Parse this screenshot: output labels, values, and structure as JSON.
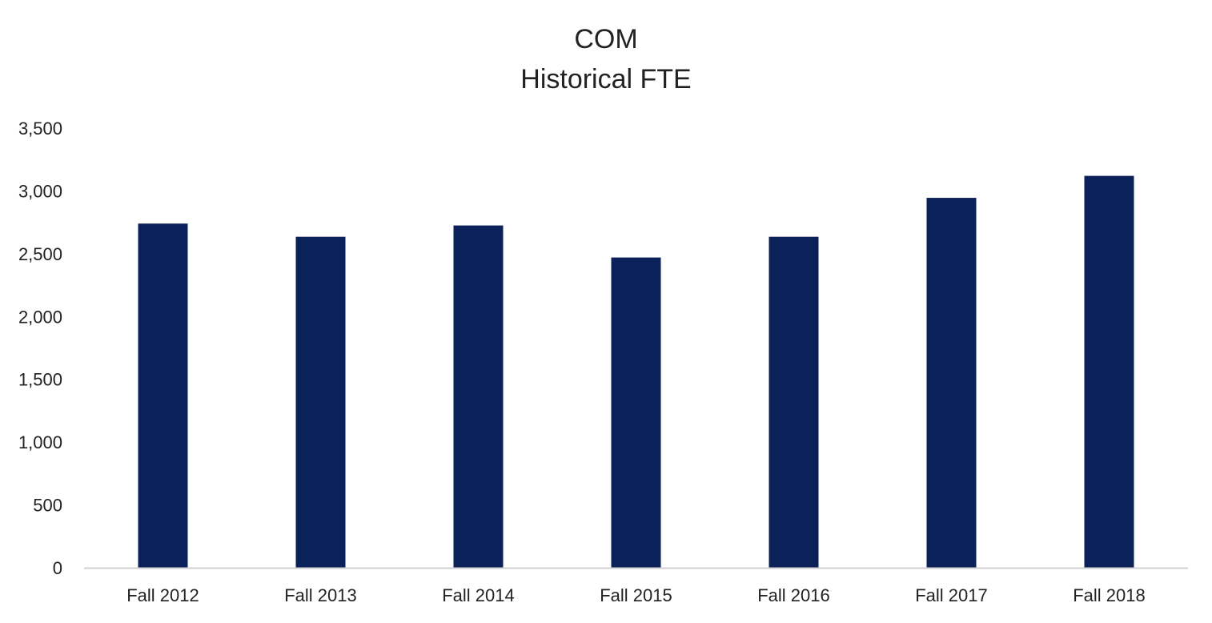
{
  "chart_data": {
    "type": "bar",
    "title": "COM",
    "subtitle": "Historical FTE",
    "xlabel": "",
    "ylabel": "",
    "categories": [
      "Fall 2012",
      "Fall 2013",
      "Fall 2014",
      "Fall 2015",
      "Fall 2016",
      "Fall 2017",
      "Fall 2018"
    ],
    "values": [
      2740,
      2635,
      2725,
      2470,
      2635,
      2945,
      3120
    ],
    "ylim": [
      0,
      3500
    ],
    "yticks": [
      0,
      500,
      1000,
      1500,
      2000,
      2500,
      3000,
      3500
    ],
    "ytick_labels": [
      "0",
      "500",
      "1,000",
      "1,500",
      "2,000",
      "2,500",
      "3,000",
      "3,500"
    ],
    "grid": false,
    "legend": "none",
    "bar_color": "#0b2159",
    "axis_color": "#d0d0d0"
  }
}
